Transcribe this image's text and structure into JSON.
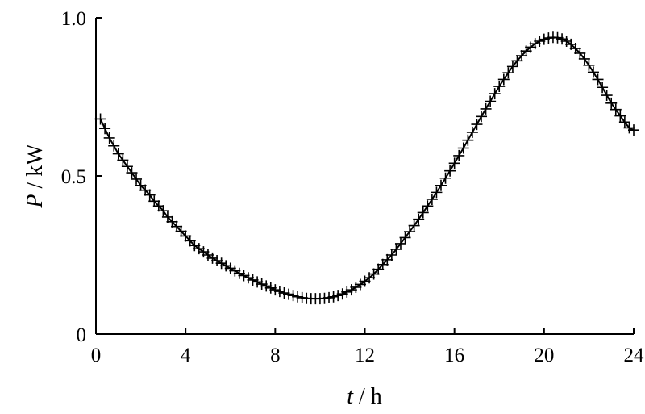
{
  "chart_data": {
    "type": "line",
    "title": "",
    "xlabel": {
      "symbol": "t",
      "unit": "h"
    },
    "ylabel": {
      "symbol": "P",
      "unit": "kW"
    },
    "xlim": [
      0,
      24
    ],
    "ylim": [
      0,
      1.0
    ],
    "x_ticks": [
      0,
      4,
      8,
      12,
      16,
      20,
      24
    ],
    "y_ticks": [
      0,
      0.5,
      1.0
    ],
    "x_tick_labels": [
      "0",
      "4",
      "8",
      "12",
      "16",
      "20",
      "24"
    ],
    "y_tick_labels": [
      "0",
      "0.5",
      "1.0"
    ],
    "grid": false,
    "legend": "none",
    "marker": "plus",
    "color": "#000000",
    "series": [
      {
        "x": [
          0.2,
          0.4,
          0.6,
          0.8,
          1.0,
          1.2,
          1.4,
          1.6,
          1.8,
          2.0,
          2.2,
          2.4,
          2.6,
          2.8,
          3.0,
          3.2,
          3.4,
          3.6,
          3.8,
          4.0,
          4.2,
          4.4,
          4.6,
          4.8,
          5.0,
          5.2,
          5.4,
          5.6,
          5.8,
          6.0,
          6.2,
          6.4,
          6.6,
          6.8,
          7.0,
          7.2,
          7.4,
          7.6,
          7.8,
          8.0,
          8.2,
          8.4,
          8.6,
          8.8,
          9.0,
          9.2,
          9.4,
          9.6,
          9.8,
          10.0,
          10.2,
          10.4,
          10.6,
          10.8,
          11.0,
          11.2,
          11.4,
          11.6,
          11.8,
          12.0,
          12.2,
          12.4,
          12.6,
          12.8,
          13.0,
          13.2,
          13.4,
          13.6,
          13.8,
          14.0,
          14.2,
          14.4,
          14.6,
          14.8,
          15.0,
          15.2,
          15.4,
          15.6,
          15.8,
          16.0,
          16.2,
          16.4,
          16.6,
          16.8,
          17.0,
          17.2,
          17.4,
          17.6,
          17.8,
          18.0,
          18.2,
          18.4,
          18.6,
          18.8,
          19.0,
          19.2,
          19.4,
          19.6,
          19.8,
          20.0,
          20.2,
          20.4,
          20.6,
          20.8,
          21.0,
          21.2,
          21.4,
          21.6,
          21.8,
          22.0,
          22.2,
          22.4,
          22.6,
          22.8,
          23.0,
          23.2,
          23.4,
          23.6,
          23.8,
          24.0
        ],
        "y": [
          0.68,
          0.65,
          0.62,
          0.595,
          0.57,
          0.55,
          0.53,
          0.51,
          0.49,
          0.47,
          0.455,
          0.44,
          0.42,
          0.405,
          0.39,
          0.37,
          0.355,
          0.34,
          0.325,
          0.31,
          0.295,
          0.28,
          0.27,
          0.26,
          0.25,
          0.24,
          0.232,
          0.224,
          0.216,
          0.208,
          0.2,
          0.192,
          0.185,
          0.178,
          0.171,
          0.165,
          0.158,
          0.152,
          0.146,
          0.14,
          0.135,
          0.13,
          0.126,
          0.122,
          0.118,
          0.115,
          0.113,
          0.112,
          0.112,
          0.112,
          0.113,
          0.115,
          0.118,
          0.122,
          0.127,
          0.133,
          0.14,
          0.148,
          0.157,
          0.167,
          0.178,
          0.19,
          0.205,
          0.22,
          0.235,
          0.25,
          0.268,
          0.286,
          0.305,
          0.324,
          0.343,
          0.363,
          0.384,
          0.405,
          0.426,
          0.448,
          0.47,
          0.493,
          0.516,
          0.54,
          0.564,
          0.588,
          0.613,
          0.638,
          0.663,
          0.688,
          0.712,
          0.736,
          0.76,
          0.783,
          0.805,
          0.826,
          0.846,
          0.864,
          0.88,
          0.895,
          0.907,
          0.918,
          0.926,
          0.932,
          0.936,
          0.938,
          0.937,
          0.933,
          0.926,
          0.916,
          0.903,
          0.888,
          0.87,
          0.85,
          0.828,
          0.805,
          0.78,
          0.755,
          0.73,
          0.71,
          0.69,
          0.67,
          0.652,
          0.645
        ]
      }
    ]
  }
}
